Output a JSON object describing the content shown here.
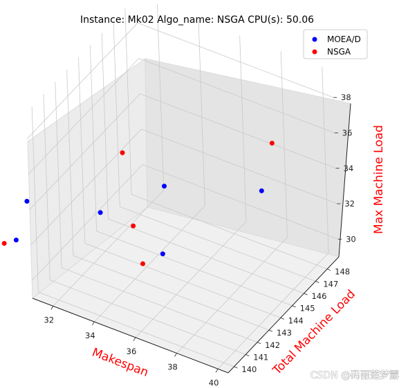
{
  "chart_data": {
    "type": "scatter",
    "projection": "3d",
    "title": "Instance: Mk02 Algo_name: NSGA CPU(s): 50.06",
    "xlabel": "Makespan",
    "ylabel": "Total Machine Load",
    "zlabel": "Max Machine Load",
    "label_color": "#ff0000",
    "x_ticks": [
      "32",
      "34",
      "36",
      "38",
      "40"
    ],
    "y_ticks": [
      "140",
      "141",
      "142",
      "143",
      "144",
      "145",
      "146",
      "147",
      "148"
    ],
    "z_ticks": [
      "30",
      "32",
      "34",
      "36",
      "38"
    ],
    "grid": true,
    "legend_position": "top-right",
    "series": [
      {
        "name": "MOEA/D",
        "color": "#0000ff",
        "points": [
          [
            30,
            141,
            33
          ],
          [
            30,
            140,
            31.5
          ],
          [
            33,
            142,
            33
          ],
          [
            36,
            142,
            32
          ],
          [
            35,
            144,
            34
          ],
          [
            38,
            147,
            33
          ]
        ]
      },
      {
        "name": "NSGA",
        "color": "#ff0000",
        "points": [
          [
            30,
            139,
            32
          ],
          [
            29,
            139,
            31
          ],
          [
            35,
            142,
            31
          ],
          [
            33,
            144,
            35
          ],
          [
            34,
            143,
            32
          ],
          [
            38,
            148,
            35
          ]
        ]
      }
    ]
  },
  "watermark": "CSDN @码丽莲梦露"
}
